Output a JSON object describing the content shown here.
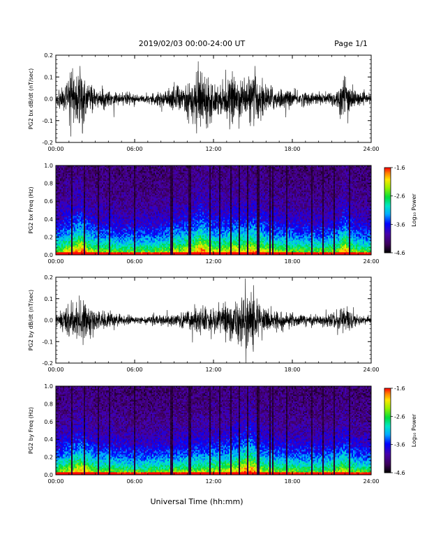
{
  "header": {
    "date_range": "2019/02/03  00:00-24:00 UT",
    "page_label": "Page 1/1"
  },
  "footer": {
    "xlabel": "Universal Time (hh:mm)"
  },
  "colorbar": {
    "label": "Log₁₀ Power",
    "ticks": [
      "-1.6",
      "-2.6",
      "-3.6",
      "-4.6"
    ],
    "range": [
      -4.6,
      -1.6
    ],
    "colormap": "rainbow (black-purple-blue-cyan-green-yellow-red)"
  },
  "chart_data": [
    {
      "type": "line",
      "ylabel": "PG2 bx dB/dt (nT/sec)",
      "xlim": [
        0,
        24
      ],
      "ylim": [
        -0.2,
        0.2
      ],
      "x_ticks": [
        "00:00",
        "06:00",
        "12:00",
        "18:00",
        "24:00"
      ],
      "y_ticks": [
        "0.2",
        "0.1",
        "0.0",
        "-0.1",
        "-0.2"
      ],
      "envelope": {
        "x_hours": [
          0,
          0.5,
          1,
          1.5,
          2,
          2.5,
          3,
          3.5,
          4,
          4.5,
          5,
          5.5,
          6,
          6.5,
          7,
          7.5,
          8,
          8.5,
          9,
          9.5,
          10,
          10.5,
          11,
          11.5,
          12,
          12.5,
          13,
          13.5,
          14,
          14.5,
          15,
          15.5,
          16,
          16.5,
          17,
          17.5,
          18,
          18.5,
          19,
          19.5,
          20,
          20.5,
          21,
          21.5,
          22,
          22.5,
          23,
          23.5,
          24
        ],
        "amplitude": [
          0.03,
          0.06,
          0.09,
          0.12,
          0.15,
          0.08,
          0.05,
          0.04,
          0.05,
          0.03,
          0.025,
          0.03,
          0.025,
          0.02,
          0.025,
          0.03,
          0.04,
          0.045,
          0.08,
          0.06,
          0.09,
          0.1,
          0.16,
          0.12,
          0.08,
          0.07,
          0.09,
          0.11,
          0.1,
          0.09,
          0.12,
          0.11,
          0.07,
          0.06,
          0.05,
          0.045,
          0.04,
          0.035,
          0.035,
          0.03,
          0.03,
          0.03,
          0.04,
          0.05,
          0.14,
          0.06,
          0.03,
          0.025,
          0.02
        ]
      }
    },
    {
      "type": "heatmap",
      "ylabel": "PG2 bx Freq (Hz)",
      "xlim": [
        0,
        24
      ],
      "ylim": [
        0,
        1.0
      ],
      "x_ticks": [
        "00:00",
        "06:00",
        "12:00",
        "18:00",
        "24:00"
      ],
      "y_ticks": [
        "1.0",
        "0.8",
        "0.6",
        "0.4",
        "0.2",
        "0.0"
      ],
      "zlim": [
        -4.6,
        -1.6
      ],
      "data_gaps_hours": [
        1.2,
        2.2,
        3.2,
        4.1,
        6.0,
        8.8,
        8.9,
        10.2,
        11.7,
        12.5,
        13.3,
        14.0,
        14.6,
        15.4,
        16.3,
        16.5,
        17.6,
        19.5,
        20.3,
        21.2,
        22.4
      ]
    },
    {
      "type": "line",
      "ylabel": "PG2 by dB/dt (nT/sec)",
      "xlim": [
        0,
        24
      ],
      "ylim": [
        -0.2,
        0.2
      ],
      "x_ticks": [
        "00:00",
        "06:00",
        "12:00",
        "18:00",
        "24:00"
      ],
      "y_ticks": [
        "0.2",
        "0.1",
        "0.0",
        "-0.1",
        "-0.2"
      ],
      "envelope": {
        "x_hours": [
          0,
          0.5,
          1,
          1.5,
          2,
          2.5,
          3,
          3.5,
          4,
          4.5,
          5,
          5.5,
          6,
          6.5,
          7,
          7.5,
          8,
          8.5,
          9,
          9.5,
          10,
          10.5,
          11,
          11.5,
          12,
          12.5,
          13,
          13.5,
          14,
          14.5,
          15,
          15.5,
          16,
          16.5,
          17,
          17.5,
          18,
          18.5,
          19,
          19.5,
          20,
          20.5,
          21,
          21.5,
          22,
          22.5,
          23,
          23.5,
          24
        ],
        "amplitude": [
          0.03,
          0.05,
          0.08,
          0.1,
          0.12,
          0.09,
          0.05,
          0.04,
          0.05,
          0.03,
          0.025,
          0.025,
          0.015,
          0.015,
          0.02,
          0.025,
          0.03,
          0.035,
          0.04,
          0.035,
          0.045,
          0.05,
          0.06,
          0.05,
          0.07,
          0.06,
          0.08,
          0.09,
          0.12,
          0.16,
          0.15,
          0.08,
          0.06,
          0.05,
          0.04,
          0.035,
          0.035,
          0.03,
          0.03,
          0.025,
          0.03,
          0.03,
          0.04,
          0.05,
          0.09,
          0.04,
          0.025,
          0.02,
          0.02
        ]
      }
    },
    {
      "type": "heatmap",
      "ylabel": "PG2 by Freq (Hz)",
      "xlim": [
        0,
        24
      ],
      "ylim": [
        0,
        1.0
      ],
      "x_ticks": [
        "00:00",
        "06:00",
        "12:00",
        "18:00",
        "24:00"
      ],
      "y_ticks": [
        "1.0",
        "0.8",
        "0.6",
        "0.4",
        "0.2",
        "0.0"
      ],
      "zlim": [
        -4.6,
        -1.6
      ],
      "data_gaps_hours": [
        1.2,
        2.2,
        3.2,
        4.1,
        6.0,
        8.8,
        8.9,
        10.2,
        11.7,
        12.5,
        13.3,
        14.0,
        14.6,
        15.4,
        16.3,
        16.5,
        17.6,
        19.5,
        20.3,
        21.2,
        22.4
      ]
    }
  ]
}
